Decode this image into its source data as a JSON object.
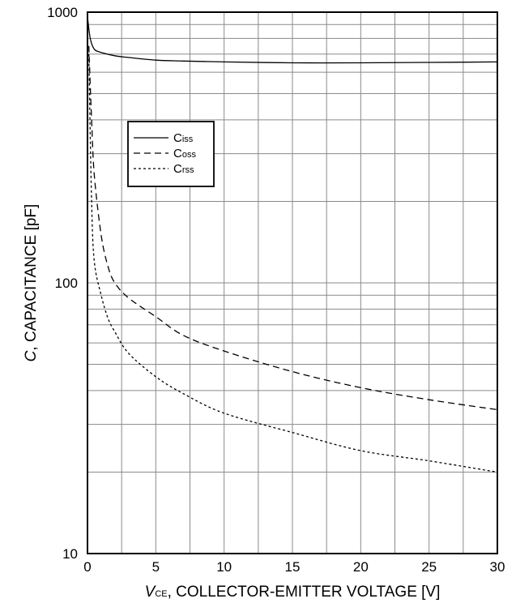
{
  "chart_data": {
    "type": "line",
    "xlabel": {
      "italic": "V",
      "sub": "CE",
      "rest": ", COLLECTOR-EMITTER VOLTAGE [V]"
    },
    "ylabel": {
      "italic": "C",
      "rest": ", CAPACITANCE [pF]"
    },
    "xlim": [
      0,
      30
    ],
    "ylim": [
      10,
      1000
    ],
    "yscale": "log",
    "grid": true,
    "legend_position": "upper-left",
    "x_ticks": [
      "0",
      "5",
      "10",
      "15",
      "20",
      "25",
      "30"
    ],
    "y_ticks": [
      "10",
      "100",
      "1000"
    ],
    "series": [
      {
        "name": "Ciss",
        "main": "C",
        "sub": "iss",
        "dash": "none",
        "x": [
          0,
          0.2,
          0.5,
          1,
          2,
          3,
          5,
          7,
          10,
          15,
          20,
          25,
          30
        ],
        "y": [
          960,
          800,
          730,
          710,
          690,
          680,
          665,
          660,
          655,
          650,
          650,
          652,
          655
        ]
      },
      {
        "name": "Coss",
        "main": "C",
        "sub": "oss",
        "dash": "8,5",
        "x": [
          0.1,
          0.3,
          0.5,
          1,
          1.5,
          2,
          3,
          5,
          7,
          10,
          15,
          20,
          25,
          30
        ],
        "y": [
          750,
          400,
          250,
          150,
          115,
          100,
          88,
          75,
          64,
          56,
          47,
          41,
          37,
          34
        ]
      },
      {
        "name": "Crss",
        "main": "C",
        "sub": "rss",
        "dash": "3,3",
        "x": [
          0.1,
          0.3,
          0.5,
          1,
          1.5,
          2,
          3,
          5,
          7,
          10,
          15,
          20,
          25,
          30
        ],
        "y": [
          700,
          200,
          120,
          90,
          74,
          66,
          55,
          45,
          39,
          33,
          28,
          24,
          22,
          20
        ]
      }
    ]
  }
}
